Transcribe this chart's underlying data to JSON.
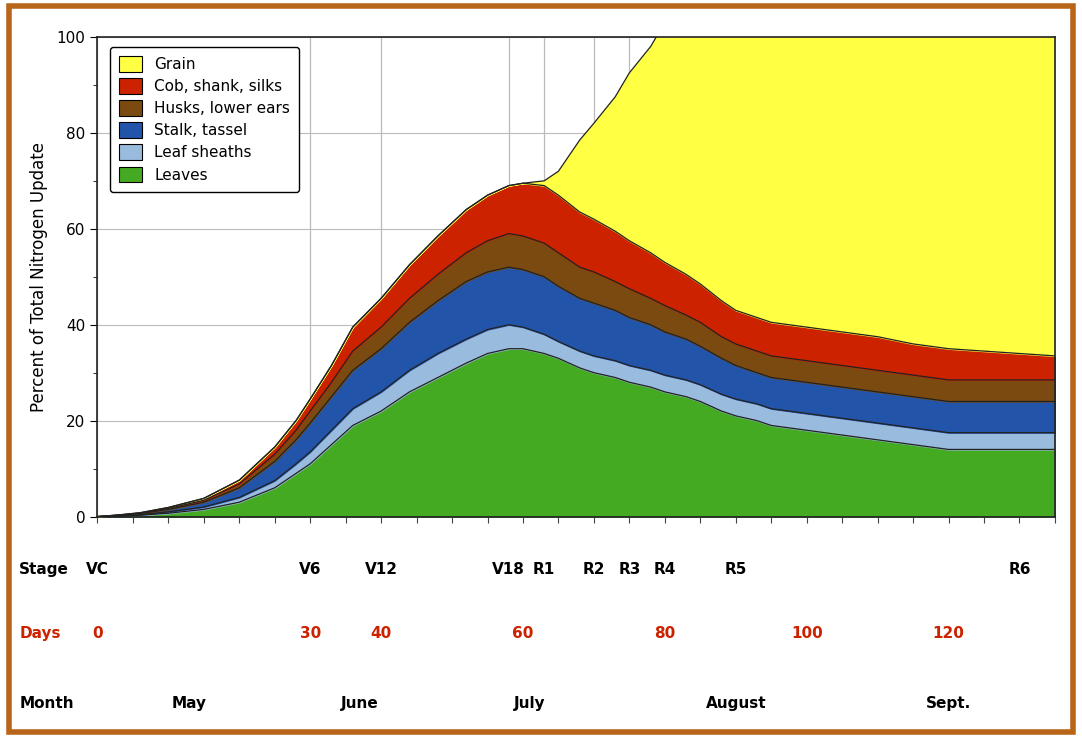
{
  "ylabel": "Percent of Total Nitrogen Update",
  "background_color": "#ffffff",
  "border_color": "#b8651a",
  "ylim": [
    0,
    100
  ],
  "xlim": [
    0,
    135
  ],
  "colors": {
    "Grain": "#ffff44",
    "Cob, shank, silks": "#cc2200",
    "Husks, lower ears": "#7a4a10",
    "Stalk, tassel": "#2255aa",
    "Leaf sheaths": "#99bbdd",
    "Leaves": "#44aa22"
  },
  "x": [
    0,
    3,
    6,
    10,
    15,
    20,
    25,
    28,
    30,
    33,
    36,
    40,
    44,
    48,
    52,
    55,
    58,
    60,
    63,
    65,
    68,
    70,
    73,
    75,
    78,
    80,
    83,
    85,
    88,
    90,
    93,
    95,
    100,
    105,
    110,
    115,
    120,
    125,
    130,
    135
  ],
  "Leaves": [
    0,
    0.1,
    0.3,
    0.7,
    1.5,
    3,
    6,
    9,
    11,
    15,
    19,
    22,
    26,
    29,
    32,
    34,
    35,
    35,
    34,
    33,
    31,
    30,
    29,
    28,
    27,
    26,
    25,
    24,
    22,
    21,
    20,
    19,
    18,
    17,
    16,
    15,
    14,
    14,
    14,
    14
  ],
  "Leaf_sheaths": [
    0,
    0.05,
    0.1,
    0.3,
    0.5,
    1,
    1.5,
    2,
    2.5,
    3,
    3.5,
    4,
    4.5,
    5,
    5,
    5,
    5,
    4.5,
    4,
    3.5,
    3.5,
    3.5,
    3.5,
    3.5,
    3.5,
    3.5,
    3.5,
    3.5,
    3.5,
    3.5,
    3.5,
    3.5,
    3.5,
    3.5,
    3.5,
    3.5,
    3.5,
    3.5,
    3.5,
    3.5
  ],
  "Stalk_tassel": [
    0,
    0.1,
    0.2,
    0.5,
    1,
    2,
    4,
    5,
    6,
    7,
    8,
    9,
    10,
    11,
    12,
    12,
    12,
    12,
    12,
    11.5,
    11,
    11,
    10.5,
    10,
    9.5,
    9,
    8.5,
    8,
    7.5,
    7,
    6.5,
    6.5,
    6.5,
    6.5,
    6.5,
    6.5,
    6.5,
    6.5,
    6.5,
    6.5
  ],
  "Husks_lower": [
    0,
    0.05,
    0.1,
    0.2,
    0.4,
    0.8,
    1.5,
    2,
    2.5,
    3,
    4,
    4.5,
    5,
    5.5,
    6,
    6.5,
    7,
    7,
    7,
    7,
    6.5,
    6.5,
    6,
    6,
    5.5,
    5.5,
    5,
    5,
    4.5,
    4.5,
    4.5,
    4.5,
    4.5,
    4.5,
    4.5,
    4.5,
    4.5,
    4.5,
    4.5,
    4.5
  ],
  "Cob_shank": [
    0,
    0.05,
    0.1,
    0.2,
    0.4,
    0.8,
    1.5,
    2,
    2.5,
    3.5,
    5,
    6,
    7,
    8,
    9,
    9.5,
    10,
    11,
    12,
    12,
    11.5,
    11,
    10.5,
    10,
    9.5,
    9,
    8.5,
    8,
    7.5,
    7,
    7,
    7,
    7,
    7,
    7,
    6.5,
    6.5,
    6,
    5.5,
    5
  ],
  "Grain": [
    0,
    0,
    0,
    0,
    0,
    0,
    0,
    0,
    0,
    0,
    0,
    0,
    0,
    0,
    0,
    0,
    0,
    0,
    1,
    5,
    15,
    20,
    28,
    35,
    43,
    50,
    55,
    60,
    65,
    67,
    68,
    69,
    70,
    72,
    76,
    82,
    88,
    93,
    97,
    99
  ],
  "stage_positions": {
    "VC": 0,
    "V6": 30,
    "V12": 40,
    "V18": 58,
    "R1": 63,
    "R2": 70,
    "R3": 75,
    "R4": 80,
    "R5": 90,
    "R6": 130
  },
  "stage_order": [
    "VC",
    "V6",
    "V12",
    "V18",
    "R1",
    "R2",
    "R3",
    "R4",
    "R5",
    "R6"
  ],
  "days_positions": [
    [
      0,
      "0"
    ],
    [
      30,
      "30"
    ],
    [
      40,
      "40"
    ],
    [
      60,
      "60"
    ],
    [
      80,
      "80"
    ],
    [
      100,
      "100"
    ],
    [
      120,
      "120"
    ]
  ],
  "month_labels": [
    [
      13,
      "May"
    ],
    [
      37,
      "June"
    ],
    [
      61,
      "July"
    ],
    [
      90,
      "August"
    ],
    [
      120,
      "Sept."
    ]
  ],
  "grid_color": "#bbbbbb",
  "line_color": "#222222",
  "tick_color": "#444444"
}
